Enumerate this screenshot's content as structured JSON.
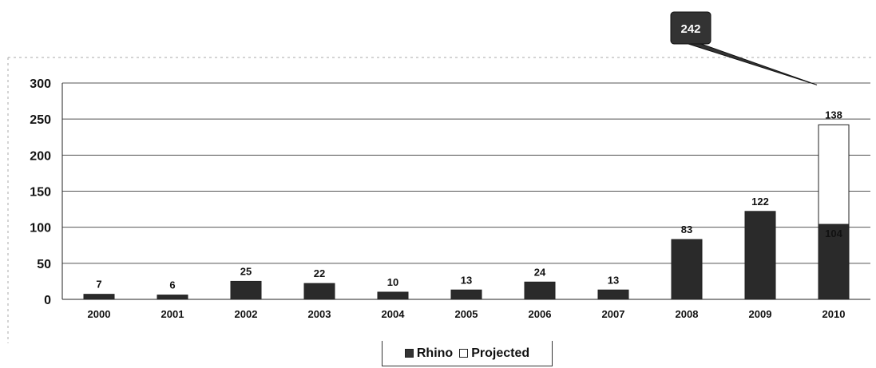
{
  "chart_data": {
    "type": "bar",
    "stacked": true,
    "categories": [
      "2000",
      "2001",
      "2002",
      "2003",
      "2004",
      "2005",
      "2006",
      "2007",
      "2008",
      "2009",
      "2010"
    ],
    "series": [
      {
        "name": "Rhino",
        "values": [
          7,
          6,
          25,
          22,
          10,
          13,
          24,
          13,
          83,
          122,
          104
        ],
        "color": "#2a2a2a"
      },
      {
        "name": "Projected",
        "values": [
          0,
          0,
          0,
          0,
          0,
          0,
          0,
          0,
          0,
          0,
          138
        ],
        "color": "#ffffff"
      }
    ],
    "yticks": [
      "0",
      "50",
      "100",
      "150",
      "200",
      "250",
      "300"
    ],
    "ylim": [
      0,
      300
    ],
    "grid": true,
    "legend_position": "bottom",
    "callout": {
      "text": "242",
      "category": "2010",
      "value": 242
    }
  },
  "colors": {
    "rhino": "#2a2a2a",
    "projected": "#ffffff",
    "callout": "#333333"
  }
}
